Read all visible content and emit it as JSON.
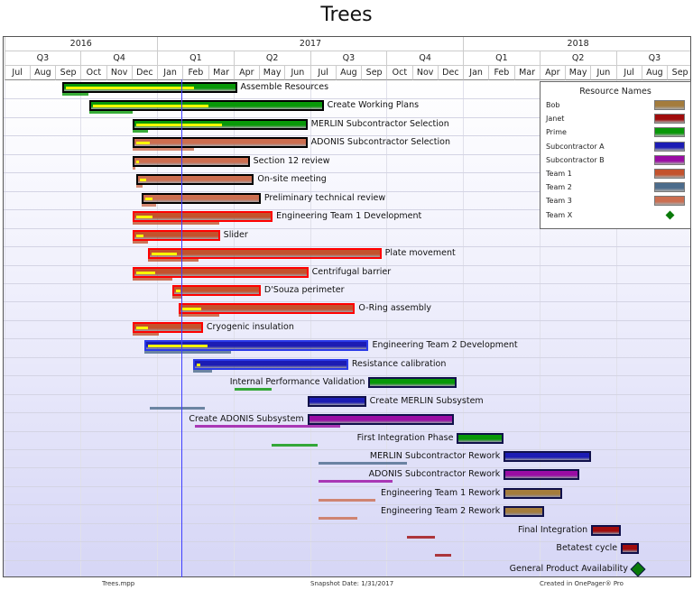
{
  "title": "Trees",
  "footer": {
    "file": "Trees.mpp",
    "snapshot": "Snapshot Date: 1/31/2017",
    "created": "Created in OnePager® Pro"
  },
  "chart_data": {
    "type": "gantt",
    "title": "Trees",
    "timeline_start": "2016-07-01",
    "timeline_end": "2018-09-30",
    "snapshot_date": "2017-01-31",
    "years": [
      {
        "label": "2016",
        "months": 6
      },
      {
        "label": "2017",
        "months": 12
      },
      {
        "label": "2018",
        "months": 9
      }
    ],
    "quarters": [
      "Q3",
      "Q4",
      "Q1",
      "Q2",
      "Q3",
      "Q4",
      "Q1",
      "Q2",
      "Q3"
    ],
    "months": [
      "Jul",
      "Aug",
      "Sep",
      "Oct",
      "Nov",
      "Dec",
      "Jan",
      "Feb",
      "Mar",
      "Apr",
      "May",
      "Jun",
      "Jul",
      "Aug",
      "Sep",
      "Oct",
      "Nov",
      "Dec",
      "Jan",
      "Feb",
      "Mar",
      "Apr",
      "May",
      "Jun",
      "Jul",
      "Aug",
      "Sep"
    ],
    "legend": {
      "title": "Resource Names",
      "items": [
        {
          "name": "Bob",
          "color": "#a47c3c"
        },
        {
          "name": "Janet",
          "color": "#a00c0c"
        },
        {
          "name": "Prime",
          "color": "#089808"
        },
        {
          "name": "Subcontractor A",
          "color": "#1c1cb4"
        },
        {
          "name": "Subcontractor B",
          "color": "#9a0ca4"
        },
        {
          "name": "Team 1",
          "color": "#c4522c"
        },
        {
          "name": "Team 2",
          "color": "#4c6c8c"
        },
        {
          "name": "Team 3",
          "color": "#cc6e50"
        },
        {
          "name": "Team X",
          "color": "#0a7a0a",
          "milestone": true
        }
      ]
    },
    "tasks": [
      {
        "name": "Assemble Resources",
        "start": "2016-09-09",
        "end": "2017-04-05",
        "resource": "Prime",
        "border": "#000000",
        "progress": 75,
        "label": "right",
        "baseline": [
          "2016-09-09",
          "2016-10-10"
        ]
      },
      {
        "name": "Create Working Plans",
        "start": "2016-10-11",
        "end": "2017-07-17",
        "resource": "Prime",
        "border": "#000000",
        "progress": 50,
        "label": "right",
        "baseline": [
          "2016-10-11",
          "2016-12-02"
        ]
      },
      {
        "name": "MERLIN Subcontractor Selection",
        "start": "2016-12-02",
        "end": "2017-06-28",
        "resource": "Prime",
        "border": "#000000",
        "progress": 50,
        "label": "right",
        "baseline": [
          "2016-12-02",
          "2016-12-20"
        ]
      },
      {
        "name": "ADONIS Subcontractor Selection",
        "start": "2016-12-02",
        "end": "2017-06-28",
        "resource": "Team 3",
        "border": "#000000",
        "progress": 8,
        "label": "right",
        "baseline": [
          "2016-12-02",
          "2017-02-15"
        ]
      },
      {
        "name": "Section 12 review",
        "start": "2016-12-02",
        "end": "2017-04-20",
        "resource": "Team 3",
        "border": "#000000",
        "progress": 3,
        "label": "right",
        "baseline": [
          "2016-12-02",
          "2016-12-06"
        ]
      },
      {
        "name": "On-site meeting",
        "start": "2016-12-07",
        "end": "2017-04-25",
        "resource": "Team 3",
        "border": "#000000",
        "progress": 5,
        "label": "right",
        "baseline": [
          "2016-12-07",
          "2016-12-14"
        ]
      },
      {
        "name": "Preliminary technical review",
        "start": "2016-12-13",
        "end": "2017-05-03",
        "resource": "Team 3",
        "border": "#000000",
        "progress": 6,
        "label": "right",
        "baseline": [
          "2016-12-13",
          "2016-12-30"
        ]
      },
      {
        "name": "Engineering Team 1 Development",
        "start": "2016-12-02",
        "end": "2017-05-17",
        "resource": "Team 1",
        "border": "#ff0000",
        "progress": 12,
        "label": "right",
        "baseline": [
          "2016-12-02",
          "2017-03-14"
        ]
      },
      {
        "name": "Slider",
        "start": "2016-12-02",
        "end": "2017-03-15",
        "resource": "Team 1",
        "border": "#ff0000",
        "progress": 9,
        "label": "right",
        "baseline": [
          "2016-12-02",
          "2016-12-20"
        ]
      },
      {
        "name": "Plate movement",
        "start": "2016-12-20",
        "end": "2017-09-25",
        "resource": "Team 1",
        "border": "#ff0000",
        "progress": 11,
        "label": "right",
        "baseline": [
          "2016-12-20",
          "2017-02-20"
        ]
      },
      {
        "name": "Centrifugal barrier",
        "start": "2016-12-02",
        "end": "2017-06-29",
        "resource": "Team 1",
        "border": "#ff0000",
        "progress": 11,
        "label": "right",
        "baseline": [
          "2016-12-02",
          "2017-01-19"
        ]
      },
      {
        "name": "D'Souza perimeter",
        "start": "2017-01-19",
        "end": "2017-05-03",
        "resource": "Team 1",
        "border": "#ff0000",
        "progress": 5,
        "label": "right",
        "baseline": [
          "2017-01-19",
          "2017-01-30"
        ]
      },
      {
        "name": "O-Ring assembly",
        "start": "2017-01-27",
        "end": "2017-08-24",
        "resource": "Team 1",
        "border": "#ff0000",
        "progress": 11,
        "label": "right",
        "baseline": [
          "2017-01-27",
          "2017-03-14"
        ]
      },
      {
        "name": "Cryogenic insulation",
        "start": "2016-12-02",
        "end": "2017-02-25",
        "resource": "Team 1",
        "border": "#ff0000",
        "progress": 18,
        "label": "right",
        "baseline": [
          "2016-12-02",
          "2017-01-03"
        ]
      },
      {
        "name": "Engineering Team 2 Development",
        "start": "2016-12-16",
        "end": "2017-09-10",
        "resource": "Subcontractor A",
        "border": "#2a3ae8",
        "progress": 27,
        "label": "right",
        "baseline": [
          "2016-12-16",
          "2017-03-28"
        ],
        "baseline_resource": "Team 2"
      },
      {
        "name": "Resistance calibration",
        "start": "2017-02-14",
        "end": "2017-08-16",
        "resource": "Subcontractor A",
        "border": "#2a3ae8",
        "progress": 2,
        "label": "right",
        "baseline": [
          "2017-02-14",
          "2017-03-06"
        ],
        "baseline_resource": "Team 2"
      },
      {
        "name": "Internal Performance Validation",
        "start": "2017-09-10",
        "end": "2017-12-24",
        "resource": "Prime",
        "border": "#10104a",
        "progress": 0,
        "label": "left",
        "baseline": [
          "2017-04-02",
          "2017-05-16"
        ]
      },
      {
        "name": "Create MERLIN Subsystem",
        "start": "2017-06-28",
        "end": "2017-09-07",
        "resource": "Subcontractor A",
        "border": "#10104a",
        "progress": 0,
        "label": "right",
        "baseline": [
          "2016-12-22",
          "2017-02-27"
        ],
        "baseline_resource": "Team 2"
      },
      {
        "name": "Create ADONIS Subsystem",
        "start": "2017-06-28",
        "end": "2017-12-20",
        "resource": "Subcontractor B",
        "border": "#10104a",
        "progress": 0,
        "label": "left",
        "baseline": [
          "2017-02-16",
          "2017-08-07"
        ]
      },
      {
        "name": "First Integration Phase",
        "start": "2017-12-24",
        "end": "2018-02-19",
        "resource": "Prime",
        "border": "#10104a",
        "progress": 0,
        "label": "left",
        "baseline": [
          "2017-05-16",
          "2017-07-10"
        ]
      },
      {
        "name": "MERLIN Subcontractor Rework",
        "start": "2018-02-19",
        "end": "2018-06-02",
        "resource": "Subcontractor A",
        "border": "#10104a",
        "progress": 0,
        "label": "left",
        "baseline": [
          "2017-07-11",
          "2017-10-25"
        ],
        "baseline_resource": "Team 2"
      },
      {
        "name": "ADONIS Subcontractor Rework",
        "start": "2018-02-19",
        "end": "2018-05-18",
        "resource": "Subcontractor B",
        "border": "#10104a",
        "progress": 0,
        "label": "left",
        "baseline": [
          "2017-07-11",
          "2017-10-08"
        ]
      },
      {
        "name": "Engineering Team 1 Rework",
        "start": "2018-02-19",
        "end": "2018-04-28",
        "resource": "Bob",
        "border": "#10104a",
        "progress": 0,
        "label": "left",
        "baseline": [
          "2017-07-11",
          "2017-09-18"
        ],
        "baseline_resource": "Team 3"
      },
      {
        "name": "Engineering Team 2 Rework",
        "start": "2018-02-19",
        "end": "2018-04-07",
        "resource": "Bob",
        "border": "#10104a",
        "progress": 0,
        "label": "left",
        "baseline": [
          "2017-07-11",
          "2017-08-27"
        ],
        "baseline_resource": "Team 3"
      },
      {
        "name": "Final Integration",
        "start": "2018-06-02",
        "end": "2018-07-07",
        "resource": "Janet",
        "border": "#10104a",
        "progress": 0,
        "label": "left",
        "baseline": [
          "2017-10-25",
          "2017-11-28"
        ]
      },
      {
        "name": "Betatest cycle",
        "start": "2018-07-07",
        "end": "2018-07-28",
        "resource": "Janet",
        "border": "#10104a",
        "progress": 0,
        "label": "left",
        "baseline": [
          "2017-11-28",
          "2017-12-17"
        ]
      },
      {
        "name": "General Product Availability",
        "start": "2018-07-27",
        "end": "2018-07-27",
        "resource": "Team X",
        "milestone": true,
        "label": "left"
      }
    ]
  }
}
